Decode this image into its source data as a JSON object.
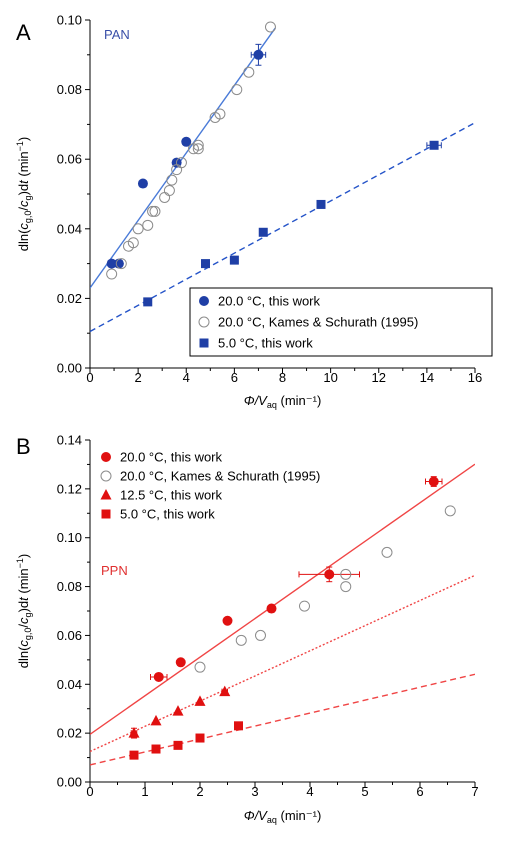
{
  "chart_data": [
    {
      "panel": "A",
      "type": "scatter",
      "inset_label": "PAN",
      "inset_color": "#3a4fa8",
      "xlabel": {
        "main": "Φ/V",
        "sub": "aq",
        "unit": " (min⁻¹)"
      },
      "ylabel": "dln(c_g,0/c_g)dt (min⁻¹)",
      "xlim": [
        0,
        16
      ],
      "ylim": [
        0,
        0.1
      ],
      "xticks": [
        "0",
        "2",
        "4",
        "6",
        "8",
        "10",
        "12",
        "14",
        "16"
      ],
      "yticks": [
        "0.00",
        "0.02",
        "0.04",
        "0.06",
        "0.08",
        "0.10"
      ],
      "legend": {
        "placement": "bottom-right",
        "entries": [
          {
            "label": "20.0 °C, this work",
            "marker": "circle-filled",
            "color": "#1f3fa6"
          },
          {
            "label": "20.0 °C, Kames & Schurath (1995)",
            "marker": "circle-open",
            "color": "#8c8c8c"
          },
          {
            "label": "5.0 °C, this work",
            "marker": "square-filled",
            "color": "#1f3fa6"
          }
        ]
      },
      "series": [
        {
          "name": "20.0 °C, this work",
          "marker": "circle-filled",
          "color": "#1f3fa6",
          "points": [
            [
              0.9,
              0.03
            ],
            [
              1.2,
              0.03
            ],
            [
              2.2,
              0.053
            ],
            [
              3.6,
              0.059
            ],
            [
              4.0,
              0.065
            ],
            [
              7.0,
              0.09
            ]
          ],
          "xerr": [
            0.15,
            0.15,
            0.15,
            0.15,
            0.15,
            0.3
          ],
          "yerr": [
            0.001,
            0.001,
            0.001,
            0.001,
            0.001,
            0.003
          ]
        },
        {
          "name": "20.0 °C, Kames & Schurath (1995)",
          "marker": "circle-open",
          "color": "#8c8c8c",
          "points": [
            [
              0.9,
              0.027
            ],
            [
              1.3,
              0.03
            ],
            [
              1.6,
              0.035
            ],
            [
              1.8,
              0.036
            ],
            [
              2.0,
              0.04
            ],
            [
              2.4,
              0.041
            ],
            [
              2.6,
              0.045
            ],
            [
              2.7,
              0.045
            ],
            [
              3.1,
              0.049
            ],
            [
              3.3,
              0.051
            ],
            [
              3.4,
              0.054
            ],
            [
              3.6,
              0.057
            ],
            [
              3.8,
              0.059
            ],
            [
              4.3,
              0.063
            ],
            [
              4.5,
              0.063
            ],
            [
              4.5,
              0.064
            ],
            [
              5.2,
              0.072
            ],
            [
              5.4,
              0.073
            ],
            [
              6.1,
              0.08
            ],
            [
              6.6,
              0.085
            ],
            [
              7.5,
              0.098
            ]
          ]
        },
        {
          "name": "5.0 °C, this work",
          "marker": "square-filled",
          "color": "#1f3fa6",
          "points": [
            [
              2.4,
              0.019
            ],
            [
              4.8,
              0.03
            ],
            [
              6.0,
              0.031
            ],
            [
              7.2,
              0.039
            ],
            [
              9.6,
              0.047
            ],
            [
              14.3,
              0.064
            ]
          ],
          "xerr": [
            0.15,
            0.15,
            0.15,
            0.15,
            0.15,
            0.3
          ],
          "yerr": [
            0.001,
            0.001,
            0.001,
            0.001,
            0.001,
            0.001
          ]
        }
      ],
      "fits": [
        {
          "for": "20.0 °C",
          "color": "#4a7bd8",
          "style": "solid",
          "intercept": 0.023,
          "slope": 0.0097,
          "x_range": [
            0,
            7.7
          ]
        },
        {
          "for": "5.0 °C",
          "color": "#2453c8",
          "style": "dashed",
          "intercept": 0.0105,
          "slope": 0.00375,
          "x_range": [
            0,
            16
          ]
        }
      ]
    },
    {
      "panel": "B",
      "type": "scatter",
      "inset_label": "PPN",
      "inset_color": "#e03030",
      "xlabel": {
        "main": "Φ/V",
        "sub": "aq",
        "unit": " (min⁻¹)"
      },
      "ylabel": "dln(c_g,0/c_g)dt (min⁻¹)",
      "xlim": [
        0,
        7
      ],
      "ylim": [
        0,
        0.14
      ],
      "xticks": [
        "0",
        "1",
        "2",
        "3",
        "4",
        "5",
        "6",
        "7"
      ],
      "yticks": [
        "0.00",
        "0.02",
        "0.04",
        "0.06",
        "0.08",
        "0.10",
        "0.12",
        "0.14"
      ],
      "legend": {
        "placement": "top-left",
        "entries": [
          {
            "label": "20.0 °C, this work",
            "marker": "circle-filled",
            "color": "#e01010"
          },
          {
            "label": "20.0 °C, Kames & Schurath (1995)",
            "marker": "circle-open",
            "color": "#8c8c8c"
          },
          {
            "label": "12.5 °C, this work",
            "marker": "triangle-filled",
            "color": "#e01010"
          },
          {
            "label": "5.0 °C, this work",
            "marker": "square-filled",
            "color": "#e01010"
          }
        ]
      },
      "series": [
        {
          "name": "20.0 °C, this work",
          "marker": "circle-filled",
          "color": "#e01010",
          "points": [
            [
              1.25,
              0.043
            ],
            [
              1.65,
              0.049
            ],
            [
              2.5,
              0.066
            ],
            [
              3.3,
              0.071
            ],
            [
              4.35,
              0.085
            ],
            [
              6.25,
              0.123
            ]
          ],
          "xerr": [
            0.15,
            0.0,
            0.0,
            0.0,
            0.55,
            0.15
          ],
          "yerr": [
            0.0,
            0.0,
            0.0,
            0.0,
            0.003,
            0.002
          ]
        },
        {
          "name": "20.0 °C, Kames & Schurath (1995)",
          "marker": "circle-open",
          "color": "#8c8c8c",
          "points": [
            [
              2.0,
              0.047
            ],
            [
              2.75,
              0.058
            ],
            [
              3.1,
              0.06
            ],
            [
              3.9,
              0.072
            ],
            [
              4.65,
              0.08
            ],
            [
              4.65,
              0.085
            ],
            [
              5.4,
              0.094
            ],
            [
              6.55,
              0.111
            ]
          ]
        },
        {
          "name": "12.5 °C, this work",
          "marker": "triangle-filled",
          "color": "#e01010",
          "points": [
            [
              0.8,
              0.02
            ],
            [
              1.2,
              0.025
            ],
            [
              1.6,
              0.029
            ],
            [
              2.0,
              0.033
            ],
            [
              2.45,
              0.037
            ]
          ],
          "xerr": [
            0.05,
            0.0,
            0.0,
            0.0,
            0.05
          ],
          "yerr": [
            0.002,
            0.0,
            0.0,
            0.0,
            0.0
          ]
        },
        {
          "name": "5.0 °C, this work",
          "marker": "square-filled",
          "color": "#e01010",
          "points": [
            [
              0.8,
              0.011
            ],
            [
              1.2,
              0.0135
            ],
            [
              1.6,
              0.015
            ],
            [
              2.0,
              0.018
            ],
            [
              2.7,
              0.023
            ]
          ]
        }
      ],
      "fits": [
        {
          "for": "20.0 °C",
          "color": "#f04545",
          "style": "solid",
          "intercept": 0.0195,
          "slope": 0.0158,
          "x_range": [
            0,
            7
          ]
        },
        {
          "for": "12.5 °C",
          "color": "#f04545",
          "style": "dotted",
          "intercept": 0.0125,
          "slope": 0.0103,
          "x_range": [
            0,
            7
          ]
        },
        {
          "for": "5.0 °C",
          "color": "#f04545",
          "style": "dashed",
          "intercept": 0.007,
          "slope": 0.0053,
          "x_range": [
            0,
            7
          ]
        }
      ]
    }
  ],
  "panel_labels": [
    "A",
    "B"
  ]
}
